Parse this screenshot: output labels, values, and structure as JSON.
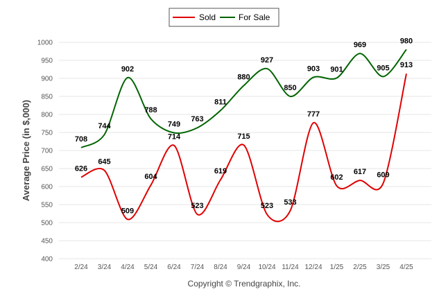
{
  "chart_data": {
    "type": "line",
    "categories": [
      "2/24",
      "3/24",
      "4/24",
      "5/24",
      "6/24",
      "7/24",
      "8/24",
      "9/24",
      "10/24",
      "11/24",
      "12/24",
      "1/25",
      "2/25",
      "3/25",
      "4/25"
    ],
    "series": [
      {
        "name": "Sold",
        "color": "#e00000",
        "values": [
          626,
          645,
          509,
          604,
          714,
          523,
          619,
          715,
          523,
          533,
          777,
          602,
          617,
          609,
          913
        ]
      },
      {
        "name": "For Sale",
        "color": "#006400",
        "values": [
          708,
          744,
          902,
          788,
          749,
          763,
          811,
          880,
          927,
          850,
          903,
          901,
          969,
          905,
          980
        ]
      }
    ],
    "ylabel": "Average Price (in $,000)",
    "xlabel": "",
    "ylim": [
      400,
      1000
    ],
    "yticks": [
      400,
      450,
      500,
      550,
      600,
      650,
      700,
      750,
      800,
      850,
      900,
      950,
      1000
    ],
    "grid": true,
    "legend_position": "top-center"
  },
  "credit": "Copyright © Trendgraphix, Inc."
}
